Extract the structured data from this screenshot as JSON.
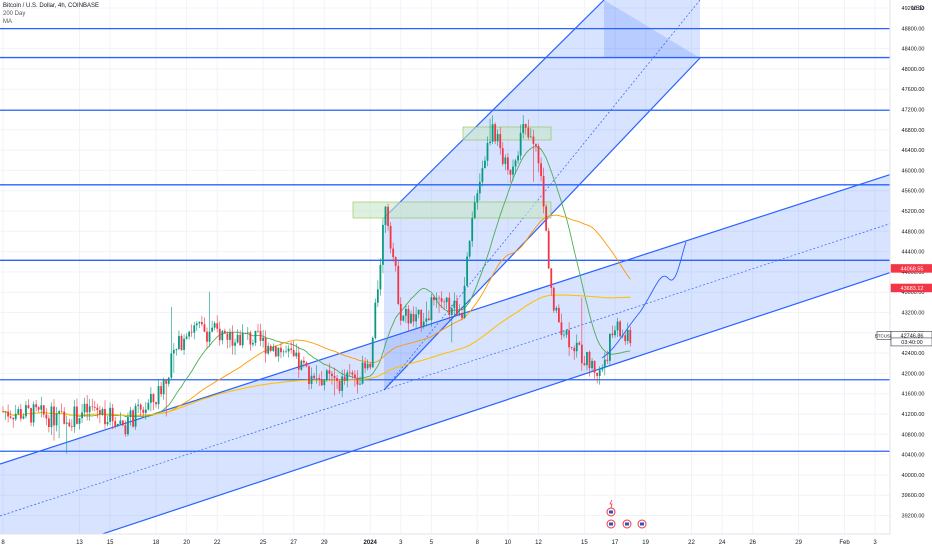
{
  "header": {
    "symbol_line": "Bitcoin / U.S. Dollar, 4h, COINBASE",
    "indicator1": "200 Day",
    "indicator2": "MA"
  },
  "currency": "USD",
  "colors": {
    "up": "#089981",
    "down": "#f23645",
    "level_line": "#2962ff",
    "channel_fill": "#2962ff",
    "ma_green": "#4caf50",
    "ma_orange": "#ff9800",
    "ma_yellow": "#ffc107",
    "zone_fill": "#c8e6c9"
  },
  "chart_data": {
    "type": "candlestick",
    "timeframe": "4h",
    "ylim": [
      39200,
      49600
    ],
    "y_axis_ticks": [
      "49200.00",
      "48800.00",
      "48400.00",
      "48000.00",
      "47600.00",
      "47200.00",
      "46800.00",
      "46400.00",
      "46000.00",
      "45600.00",
      "45200.00",
      "44800.00",
      "44400.00",
      "44000.00",
      "43600.00",
      "43200.00",
      "42800.00",
      "42400.00",
      "42000.00",
      "41600.00",
      "41200.00",
      "40800.00",
      "40400.00",
      "40000.00",
      "39600.00",
      "39200.00"
    ],
    "x_axis_ticks": [
      {
        "label": "8",
        "day": 0
      },
      {
        "label": "13",
        "day": 5
      },
      {
        "label": "15",
        "day": 7
      },
      {
        "label": "18",
        "day": 10
      },
      {
        "label": "20",
        "day": 12
      },
      {
        "label": "22",
        "day": 14
      },
      {
        "label": "25",
        "day": 17
      },
      {
        "label": "27",
        "day": 19
      },
      {
        "label": "29",
        "day": 21
      },
      {
        "label": "2024",
        "day": 24
      },
      {
        "label": "3",
        "day": 26
      },
      {
        "label": "5",
        "day": 28
      },
      {
        "label": "8",
        "day": 31
      },
      {
        "label": "10",
        "day": 33
      },
      {
        "label": "12",
        "day": 35
      },
      {
        "label": "15",
        "day": 38
      },
      {
        "label": "17",
        "day": 40
      },
      {
        "label": "19",
        "day": 42
      },
      {
        "label": "22",
        "day": 45
      },
      {
        "label": "24",
        "day": 47
      },
      {
        "label": "26",
        "day": 49
      },
      {
        "label": "29",
        "day": 52
      },
      {
        "label": "Feb",
        "day": 55
      },
      {
        "label": "3",
        "day": 57
      }
    ],
    "horizontal_levels": [
      {
        "price": 49450,
        "label": "49450.00"
      },
      {
        "price": 48793.78,
        "label": "48793.78"
      },
      {
        "price": 48223.63,
        "label": "48223.63"
      },
      {
        "price": 47185.5,
        "label": "47185.50"
      },
      {
        "price": 45716.45,
        "label": "45716.45"
      },
      {
        "price": 44228.49,
        "label": "44228.49"
      },
      {
        "price": 41874.57,
        "label": "41874.57"
      },
      {
        "price": 40466.53,
        "label": "40466.53"
      }
    ],
    "price_badges": [
      {
        "label": "44068.55",
        "price": 44068.55,
        "color": "#f23645"
      },
      {
        "label": "43683.12",
        "price": 43683.12,
        "color": "#f23645"
      },
      {
        "label": "42746.86",
        "price": 42746.86,
        "color": "#131722",
        "prefix": "BTCUSD"
      },
      {
        "label": "03:40:00",
        "price": 42620,
        "color": "#131722"
      }
    ],
    "candles_summary": {
      "start_close": 41250,
      "waypoints": [
        [
          0,
          41250
        ],
        [
          2,
          41200
        ],
        [
          4,
          41100
        ],
        [
          6,
          41300
        ],
        [
          8,
          41000
        ],
        [
          10,
          41500
        ],
        [
          12,
          42900
        ],
        [
          14,
          42800
        ],
        [
          16,
          42700
        ],
        [
          18,
          42500
        ],
        [
          20,
          42000
        ],
        [
          22,
          41800
        ],
        [
          24,
          42100
        ],
        [
          25,
          45400
        ],
        [
          26,
          43200
        ],
        [
          27,
          43000
        ],
        [
          28,
          43300
        ],
        [
          30,
          43300
        ],
        [
          31,
          45700
        ],
        [
          32,
          46900
        ],
        [
          33,
          45900
        ],
        [
          34,
          46800
        ],
        [
          35,
          46300
        ],
        [
          36,
          43200
        ],
        [
          37,
          42700
        ],
        [
          38,
          42300
        ],
        [
          39,
          42000
        ],
        [
          40,
          42900
        ],
        [
          41,
          42600
        ]
      ]
    }
  }
}
